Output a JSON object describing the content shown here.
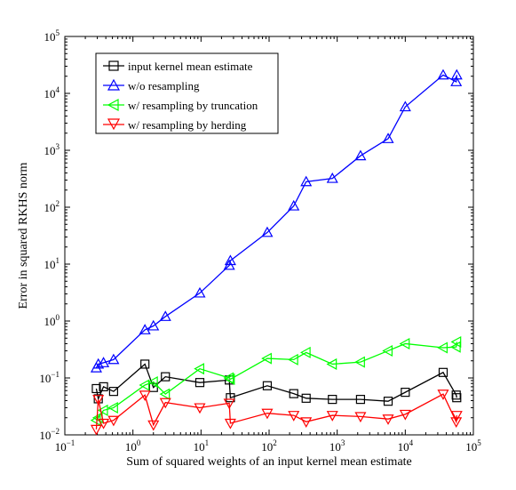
{
  "chart_data": {
    "type": "line",
    "xscale": "log",
    "yscale": "log",
    "xlim": [
      0.1,
      100000
    ],
    "ylim": [
      0.01,
      100000
    ],
    "xlabel": "Sum of squared weights of an input kernel mean estimate",
    "ylabel": "Error in squared RKHS norm",
    "x_tick_labels": [
      {
        "base": "10",
        "exp": "−1"
      },
      {
        "base": "10",
        "exp": "0"
      },
      {
        "base": "10",
        "exp": "1"
      },
      {
        "base": "10",
        "exp": "2"
      },
      {
        "base": "10",
        "exp": "3"
      },
      {
        "base": "10",
        "exp": "4"
      },
      {
        "base": "10",
        "exp": "5"
      }
    ],
    "y_tick_labels": [
      {
        "base": "10",
        "exp": "−2"
      },
      {
        "base": "10",
        "exp": "−1"
      },
      {
        "base": "10",
        "exp": "0"
      },
      {
        "base": "10",
        "exp": "1"
      },
      {
        "base": "10",
        "exp": "2"
      },
      {
        "base": "10",
        "exp": "3"
      },
      {
        "base": "10",
        "exp": "4"
      },
      {
        "base": "10",
        "exp": "5"
      }
    ],
    "grid": false,
    "legend_position": "top-left",
    "series": [
      {
        "name": "input kernel mean estimate",
        "color": "#000000",
        "marker": "square",
        "points": [
          [
            0.29,
            0.065
          ],
          [
            0.31,
            0.043
          ],
          [
            0.37,
            0.07
          ],
          [
            0.52,
            0.058
          ],
          [
            1.5,
            0.175
          ],
          [
            2.0,
            0.068
          ],
          [
            3.0,
            0.105
          ],
          [
            9.6,
            0.083
          ],
          [
            26,
            0.092
          ],
          [
            27,
            0.045
          ],
          [
            94,
            0.073
          ],
          [
            230,
            0.053
          ],
          [
            350,
            0.044
          ],
          [
            850,
            0.042
          ],
          [
            2200,
            0.042
          ],
          [
            5600,
            0.039
          ],
          [
            10000,
            0.056
          ],
          [
            36000,
            0.125
          ],
          [
            56000,
            0.05
          ],
          [
            57000,
            0.045
          ]
        ]
      },
      {
        "name": "w/o resampling",
        "color": "#0000ff",
        "marker": "triangle-up",
        "points": [
          [
            0.29,
            0.15
          ],
          [
            0.31,
            0.175
          ],
          [
            0.37,
            0.185
          ],
          [
            0.52,
            0.21
          ],
          [
            1.5,
            0.7
          ],
          [
            2.0,
            0.82
          ],
          [
            3.0,
            1.2
          ],
          [
            9.6,
            3.1
          ],
          [
            26,
            9.5
          ],
          [
            27,
            11.5
          ],
          [
            94,
            36
          ],
          [
            230,
            105
          ],
          [
            350,
            280
          ],
          [
            850,
            320
          ],
          [
            2200,
            800
          ],
          [
            5600,
            1600
          ],
          [
            10000,
            5800
          ],
          [
            36000,
            21000
          ],
          [
            56000,
            16000
          ],
          [
            57000,
            21000
          ]
        ]
      },
      {
        "name": "w/ resampling by truncation",
        "color": "#00ff00",
        "marker": "triangle-left",
        "points": [
          [
            0.29,
            0.018
          ],
          [
            0.31,
            0.02
          ],
          [
            0.37,
            0.027
          ],
          [
            0.52,
            0.03
          ],
          [
            1.5,
            0.075
          ],
          [
            2.0,
            0.085
          ],
          [
            3.0,
            0.052
          ],
          [
            9.6,
            0.145
          ],
          [
            26,
            0.1
          ],
          [
            27,
            0.095
          ],
          [
            94,
            0.22
          ],
          [
            230,
            0.21
          ],
          [
            350,
            0.28
          ],
          [
            850,
            0.175
          ],
          [
            2200,
            0.19
          ],
          [
            5600,
            0.3
          ],
          [
            10000,
            0.4
          ],
          [
            36000,
            0.34
          ],
          [
            56000,
            0.35
          ],
          [
            57000,
            0.43
          ]
        ]
      },
      {
        "name": "w/ resampling by herding",
        "color": "#ff0000",
        "marker": "triangle-down",
        "points": [
          [
            0.29,
            0.0125
          ],
          [
            0.31,
            0.042
          ],
          [
            0.37,
            0.016
          ],
          [
            0.52,
            0.018
          ],
          [
            1.5,
            0.05
          ],
          [
            2.0,
            0.015
          ],
          [
            3.0,
            0.037
          ],
          [
            9.6,
            0.03
          ],
          [
            26,
            0.036
          ],
          [
            27,
            0.016
          ],
          [
            94,
            0.024
          ],
          [
            230,
            0.022
          ],
          [
            350,
            0.017
          ],
          [
            850,
            0.022
          ],
          [
            2200,
            0.021
          ],
          [
            5600,
            0.019
          ],
          [
            10000,
            0.023
          ],
          [
            36000,
            0.052
          ],
          [
            56000,
            0.017
          ],
          [
            57000,
            0.022
          ]
        ]
      }
    ]
  }
}
